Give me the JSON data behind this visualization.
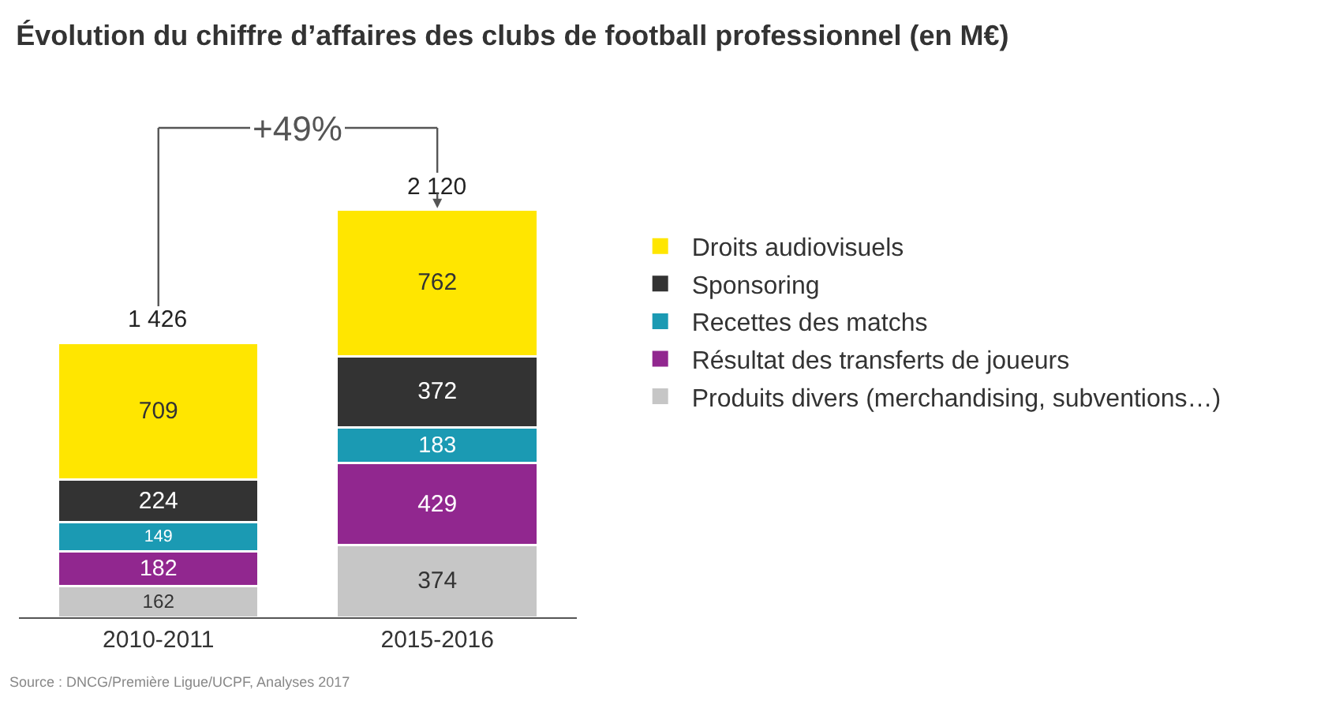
{
  "chart_data": {
    "type": "bar",
    "stacked": true,
    "title": "Évolution du chiffre d’affaires des clubs de football professionnel (en M€)",
    "categories": [
      "2010-2011",
      "2015-2016"
    ],
    "series": [
      {
        "name": "Produits divers (merchandising, subventions…)",
        "color": "#c6c6c6",
        "values": [
          162,
          374
        ]
      },
      {
        "name": "Résultat des transferts de joueurs",
        "color": "#91278f",
        "values": [
          182,
          429
        ]
      },
      {
        "name": "Recettes des matchs",
        "color": "#1b9ab3",
        "values": [
          149,
          183
        ]
      },
      {
        "name": "Sponsoring",
        "color": "#333333",
        "values": [
          224,
          372
        ]
      },
      {
        "name": "Droits audiovisuels",
        "color": "#ffe600",
        "values": [
          709,
          762
        ]
      }
    ],
    "data_labels": true,
    "totals": [
      "1 426",
      "2 120"
    ],
    "legend": "right",
    "grid": false,
    "annotations": [
      "+49%",
      "Source : DNCG/Première Ligue/UCPF, Analyses 2017"
    ]
  }
}
